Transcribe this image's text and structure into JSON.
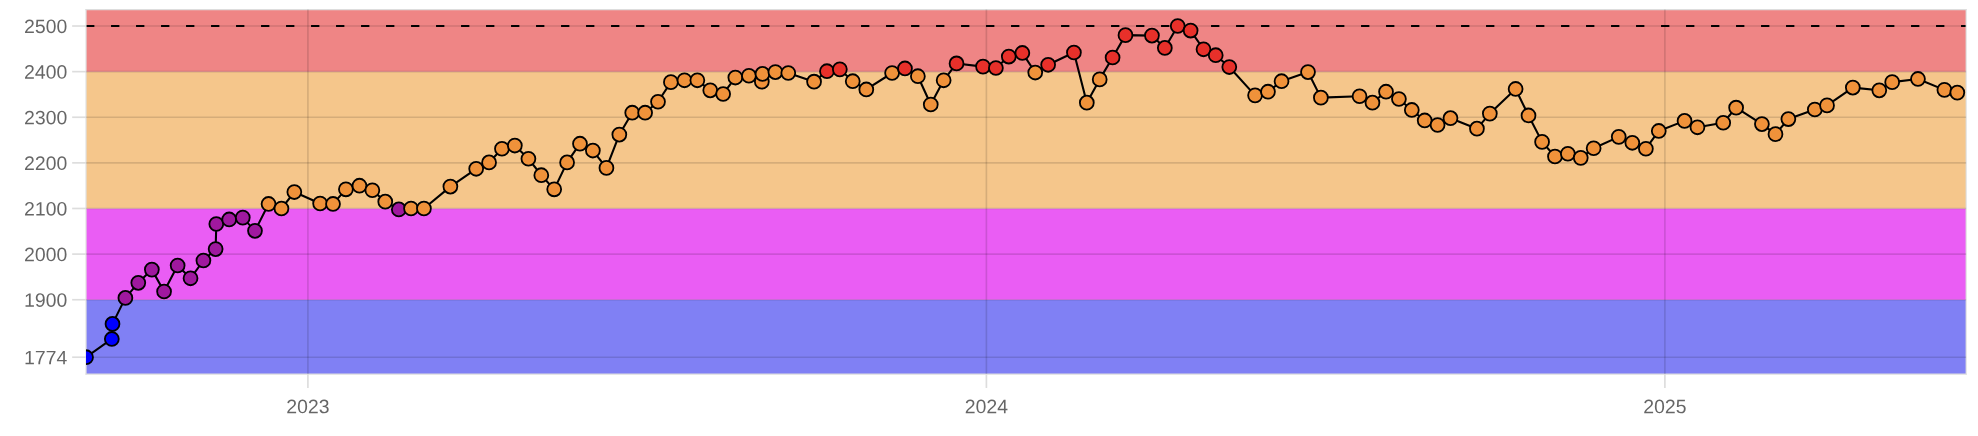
{
  "chart_data": {
    "type": "line",
    "x": [
      2022.673,
      2022.711,
      2022.712,
      2022.731,
      2022.75,
      2022.77,
      2022.788,
      2022.808,
      2022.827,
      2022.846,
      2022.864,
      2022.865,
      2022.884,
      2022.904,
      2022.922,
      2022.942,
      2022.961,
      2022.98,
      2023.018,
      2023.037,
      2023.056,
      2023.076,
      2023.095,
      2023.114,
      2023.134,
      2023.152,
      2023.171,
      2023.21,
      2023.248,
      2023.267,
      2023.286,
      2023.305,
      2023.325,
      2023.344,
      2023.363,
      2023.382,
      2023.401,
      2023.42,
      2023.44,
      2023.459,
      2023.478,
      2023.497,
      2023.516,
      2023.535,
      2023.555,
      2023.574,
      2023.593,
      2023.612,
      2023.63,
      2023.65,
      2023.669,
      2023.67,
      2023.689,
      2023.708,
      2023.746,
      2023.765,
      2023.784,
      2023.803,
      2023.823,
      2023.861,
      2023.88,
      2023.899,
      2023.918,
      2023.937,
      2023.956,
      2023.995,
      2024.014,
      2024.033,
      2024.053,
      2024.072,
      2024.091,
      2024.129,
      2024.148,
      2024.167,
      2024.186,
      2024.205,
      2024.244,
      2024.263,
      2024.282,
      2024.301,
      2024.32,
      2024.338,
      2024.358,
      2024.396,
      2024.415,
      2024.435,
      2024.474,
      2024.493,
      2024.55,
      2024.569,
      2024.589,
      2024.608,
      2024.627,
      2024.646,
      2024.665,
      2024.684,
      2024.723,
      2024.742,
      2024.78,
      2024.799,
      2024.819,
      2024.838,
      2024.857,
      2024.876,
      2024.895,
      2024.932,
      2024.952,
      2024.972,
      2024.991,
      2025.029,
      2025.048,
      2025.086,
      2025.105,
      2025.143,
      2025.163,
      2025.182,
      2025.221,
      2025.239,
      2025.277,
      2025.316,
      2025.335,
      2025.373,
      2025.412,
      2025.431
    ],
    "series": [
      {
        "color": "#000000",
        "values": [
          1774,
          1814,
          1847,
          1904,
          1937,
          1966,
          1918,
          1975,
          1947,
          1986,
          2011,
          2066,
          2076,
          2080,
          2051,
          2110,
          2100,
          2136,
          2111,
          2110,
          2142,
          2150,
          2140,
          2115,
          2098,
          2100,
          2100,
          2148,
          2187,
          2201,
          2231,
          2238,
          2209,
          2173,
          2142,
          2201,
          2242,
          2227,
          2189,
          2262,
          2310,
          2310,
          2334,
          2377,
          2381,
          2381,
          2359,
          2351,
          2387,
          2391,
          2378,
          2395,
          2399,
          2397,
          2378,
          2401,
          2405,
          2379,
          2361,
          2397,
          2407,
          2390,
          2328,
          2381,
          2418,
          2411,
          2408,
          2433,
          2441,
          2398,
          2415,
          2442,
          2332,
          2383,
          2431,
          2480,
          2479,
          2452,
          2500,
          2490,
          2449,
          2436,
          2410,
          2348,
          2356,
          2379,
          2399,
          2343,
          2346,
          2332,
          2356,
          2340,
          2316,
          2293,
          2283,
          2298,
          2275,
          2308,
          2362,
          2304,
          2246,
          2214,
          2220,
          2211,
          2232,
          2257,
          2244,
          2231,
          2270,
          2292,
          2278,
          2288,
          2321,
          2285,
          2263,
          2296,
          2317,
          2326,
          2365,
          2359,
          2377,
          2384,
          2360,
          2354
        ],
        "colors": [
          "#0000ff",
          "#0000ff",
          "#0000ff",
          "#a0189f",
          "#a0189f",
          "#a0189f",
          "#a0189f",
          "#a0189f",
          "#a0189f",
          "#a0189f",
          "#a0189f",
          "#a0189f",
          "#a0189f",
          "#a0189f",
          "#a0189f",
          "#f0923a",
          "#f0923a",
          "#f0923a",
          "#f0923a",
          "#f0923a",
          "#f0923a",
          "#f0923a",
          "#f0923a",
          "#f0923a",
          "#a0189f",
          "#f0923a",
          "#f0923a",
          "#f0923a",
          "#f0923a",
          "#f0923a",
          "#f0923a",
          "#f0923a",
          "#f0923a",
          "#f0923a",
          "#f0923a",
          "#f0923a",
          "#f0923a",
          "#f0923a",
          "#f0923a",
          "#f0923a",
          "#f0923a",
          "#f0923a",
          "#f0923a",
          "#f0923a",
          "#f0923a",
          "#f0923a",
          "#f0923a",
          "#f0923a",
          "#f0923a",
          "#f0923a",
          "#f0923a",
          "#f0923a",
          "#f0923a",
          "#f0923a",
          "#f0923a",
          "#e8302a",
          "#e8302a",
          "#f0923a",
          "#f0923a",
          "#f0923a",
          "#e8302a",
          "#f0923a",
          "#f0923a",
          "#f0923a",
          "#e8302a",
          "#e8302a",
          "#e8302a",
          "#e8302a",
          "#e8302a",
          "#f0923a",
          "#e8302a",
          "#e8302a",
          "#f0923a",
          "#f0923a",
          "#e8302a",
          "#e8302a",
          "#e8302a",
          "#e8302a",
          "#e8302a",
          "#e8302a",
          "#e8302a",
          "#e8302a",
          "#e8302a",
          "#f0923a",
          "#f0923a",
          "#f0923a",
          "#f0923a",
          "#f0923a",
          "#f0923a",
          "#f0923a",
          "#f0923a",
          "#f0923a",
          "#f0923a",
          "#f0923a",
          "#f0923a",
          "#f0923a",
          "#f0923a",
          "#f0923a",
          "#f0923a",
          "#f0923a",
          "#f0923a",
          "#f0923a",
          "#f0923a",
          "#f0923a",
          "#f0923a",
          "#f0923a",
          "#f0923a",
          "#f0923a",
          "#f0923a",
          "#f0923a",
          "#f0923a",
          "#f0923a",
          "#f0923a",
          "#f0923a",
          "#f0923a",
          "#f0923a",
          "#f0923a",
          "#f0923a",
          "#f0923a",
          "#f0923a",
          "#f0923a",
          "#f0923a",
          "#f0923a",
          "#f0923a"
        ]
      }
    ],
    "xlim": [
      2022.673,
      2025.444
    ],
    "xticks": [
      2023,
      2024,
      2025
    ],
    "ylim": [
      1737,
      2536
    ],
    "yticks": [
      1774,
      1900,
      2000,
      2100,
      2200,
      2300,
      2400,
      2500
    ],
    "bands": [
      {
        "axis": "y",
        "from": 1737,
        "to": 1900,
        "color": "#8080f4"
      },
      {
        "axis": "y",
        "from": 1900,
        "to": 2100,
        "color": "#ea5df4"
      },
      {
        "axis": "y",
        "from": 2100,
        "to": 2400,
        "color": "#f5c68b"
      },
      {
        "axis": "y",
        "from": 2400,
        "to": 2536,
        "color": "#ef8585"
      }
    ],
    "ref_lines": [
      {
        "axis": "y",
        "value": 2500,
        "color": "#000000",
        "line_style": "dashed"
      }
    ],
    "grid": true,
    "marker": "circle",
    "line_style": "solid",
    "legend": false
  }
}
